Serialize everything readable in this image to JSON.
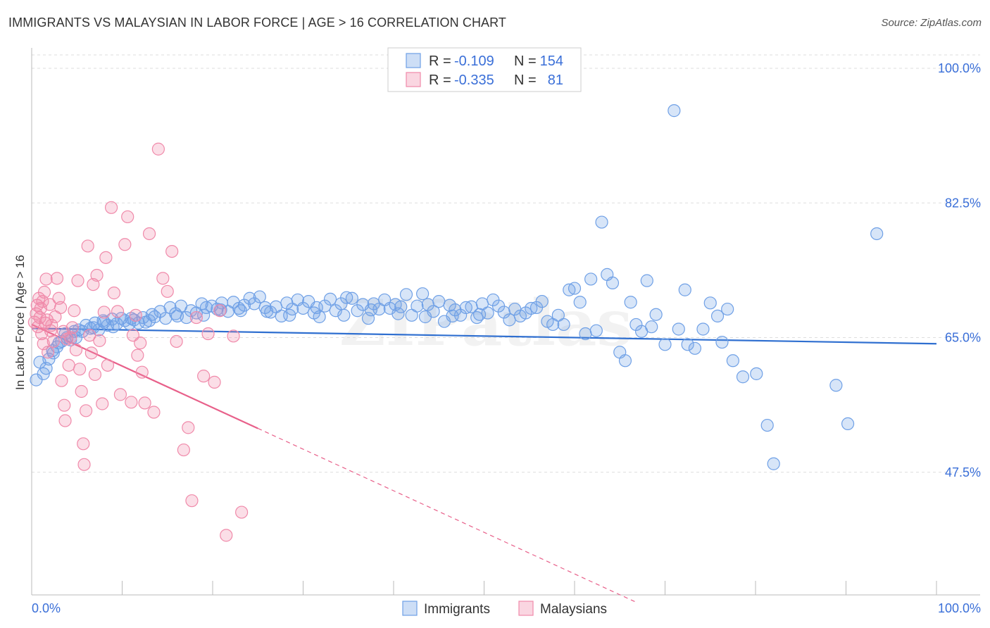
{
  "title": "IMMIGRANTS VS MALAYSIAN IN LABOR FORCE | AGE > 16 CORRELATION CHART",
  "source": "Source: ZipAtlas.com",
  "watermark": "ZIPatlas",
  "colors": {
    "immigrants": "#6fa0e6",
    "immigrants_line": "#2f6fd0",
    "malaysians": "#f08aaa",
    "malaysians_line": "#e8608a",
    "axis_text": "#3a6fd8",
    "grid": "#dddddd"
  },
  "legend": {
    "rows": [
      {
        "r_label": "R =",
        "r_value": "-0.109",
        "n_label": "N =",
        "n_value": "154"
      },
      {
        "r_label": "R =",
        "r_value": "-0.335",
        "n_label": "N =",
        "n_value": "81"
      }
    ]
  },
  "bottom_legend": [
    "Immigrants",
    "Malaysians"
  ],
  "chart_data": {
    "type": "scatter",
    "title": "IMMIGRANTS VS MALAYSIAN IN LABOR FORCE | AGE > 16 CORRELATION CHART",
    "xlabel": "",
    "ylabel": "In Labor Force | Age > 16",
    "xlim": [
      0,
      100
    ],
    "ylim": [
      30,
      100
    ],
    "x_tick_labels": [
      "0.0%",
      "100.0%"
    ],
    "y_ticks": [
      47.5,
      65.0,
      82.5,
      100.0
    ],
    "y_tick_labels": [
      "47.5%",
      "65.0%",
      "82.5%",
      "100.0%"
    ],
    "series": [
      {
        "name": "Immigrants",
        "r": -0.109,
        "n": 154,
        "trend": {
          "x": [
            0,
            100
          ],
          "y": [
            66.2,
            64.2
          ]
        },
        "points": [
          [
            0.5,
            59.5
          ],
          [
            1.3,
            60.3
          ],
          [
            1.9,
            62.2
          ],
          [
            2.3,
            63.3
          ],
          [
            2.8,
            63.8
          ],
          [
            3.3,
            64.5
          ],
          [
            3.9,
            65.0
          ],
          [
            4.3,
            64.7
          ],
          [
            4.7,
            65.8
          ],
          [
            5.2,
            66.0
          ],
          [
            5.6,
            65.8
          ],
          [
            6.0,
            66.6
          ],
          [
            6.5,
            66.2
          ],
          [
            7.0,
            66.9
          ],
          [
            7.4,
            66.0
          ],
          [
            7.9,
            67.2
          ],
          [
            8.4,
            66.6
          ],
          [
            8.9,
            67.4
          ],
          [
            9.4,
            66.8
          ],
          [
            9.9,
            67.5
          ],
          [
            10.3,
            67.2
          ],
          [
            10.8,
            66.8
          ],
          [
            11.3,
            67.3
          ],
          [
            11.8,
            66.9
          ],
          [
            12.3,
            67.6
          ],
          [
            13.0,
            67.2
          ],
          [
            13.6,
            67.7
          ],
          [
            14.2,
            68.4
          ],
          [
            14.8,
            67.5
          ],
          [
            15.3,
            68.9
          ],
          [
            15.9,
            68.1
          ],
          [
            16.5,
            69.1
          ],
          [
            17.1,
            67.6
          ],
          [
            17.6,
            68.5
          ],
          [
            18.2,
            68.2
          ],
          [
            18.8,
            69.4
          ],
          [
            19.3,
            68.9
          ],
          [
            19.9,
            69.1
          ],
          [
            20.5,
            68.7
          ],
          [
            21.0,
            69.5
          ],
          [
            21.7,
            68.4
          ],
          [
            22.3,
            69.6
          ],
          [
            22.9,
            68.8
          ],
          [
            23.5,
            69.2
          ],
          [
            24.1,
            70.1
          ],
          [
            24.6,
            69.4
          ],
          [
            25.2,
            70.3
          ],
          [
            25.8,
            68.9
          ],
          [
            26.4,
            68.3
          ],
          [
            27.0,
            69.0
          ],
          [
            27.6,
            67.8
          ],
          [
            28.2,
            69.5
          ],
          [
            28.8,
            68.7
          ],
          [
            29.4,
            69.9
          ],
          [
            30.0,
            68.8
          ],
          [
            30.6,
            69.7
          ],
          [
            31.2,
            68.2
          ],
          [
            31.8,
            67.7
          ],
          [
            32.4,
            69.1
          ],
          [
            33.0,
            70.0
          ],
          [
            33.6,
            68.5
          ],
          [
            34.2,
            69.4
          ],
          [
            34.8,
            70.2
          ],
          [
            35.4,
            70.1
          ],
          [
            36.0,
            68.5
          ],
          [
            36.6,
            69.3
          ],
          [
            37.2,
            67.5
          ],
          [
            37.8,
            69.4
          ],
          [
            38.4,
            68.7
          ],
          [
            39.0,
            69.9
          ],
          [
            39.6,
            68.8
          ],
          [
            40.2,
            69.3
          ],
          [
            40.8,
            69.0
          ],
          [
            41.4,
            70.6
          ],
          [
            42.0,
            67.9
          ],
          [
            42.6,
            69.1
          ],
          [
            43.2,
            70.7
          ],
          [
            43.8,
            69.3
          ],
          [
            44.4,
            68.4
          ],
          [
            45.0,
            69.7
          ],
          [
            45.6,
            67.1
          ],
          [
            46.2,
            69.2
          ],
          [
            46.8,
            68.6
          ],
          [
            47.4,
            67.9
          ],
          [
            48.0,
            68.9
          ],
          [
            48.6,
            69.0
          ],
          [
            49.2,
            67.6
          ],
          [
            49.8,
            69.4
          ],
          [
            50.4,
            68.2
          ],
          [
            51.0,
            69.9
          ],
          [
            51.6,
            69.1
          ],
          [
            52.2,
            68.3
          ],
          [
            52.8,
            67.3
          ],
          [
            53.4,
            68.7
          ],
          [
            54.0,
            67.8
          ],
          [
            54.6,
            68.2
          ],
          [
            55.2,
            68.8
          ],
          [
            55.8,
            68.9
          ],
          [
            56.4,
            69.7
          ],
          [
            57.0,
            67.1
          ],
          [
            57.6,
            66.7
          ],
          [
            58.2,
            67.9
          ],
          [
            58.8,
            66.7
          ],
          [
            59.4,
            71.2
          ],
          [
            60.0,
            71.4
          ],
          [
            60.6,
            69.6
          ],
          [
            61.2,
            65.5
          ],
          [
            61.8,
            72.6
          ],
          [
            62.4,
            65.9
          ],
          [
            63.0,
            80.0
          ],
          [
            63.6,
            73.2
          ],
          [
            64.2,
            72.1
          ],
          [
            65.0,
            63.1
          ],
          [
            65.6,
            62.0
          ],
          [
            66.2,
            69.6
          ],
          [
            66.8,
            66.7
          ],
          [
            67.4,
            65.8
          ],
          [
            68.0,
            72.4
          ],
          [
            68.5,
            66.4
          ],
          [
            69.0,
            68.0
          ],
          [
            70.0,
            64.1
          ],
          [
            71.0,
            94.5
          ],
          [
            71.5,
            66.1
          ],
          [
            72.2,
            71.2
          ],
          [
            72.5,
            64.1
          ],
          [
            73.3,
            63.6
          ],
          [
            74.2,
            66.1
          ],
          [
            75.0,
            69.5
          ],
          [
            75.8,
            67.8
          ],
          [
            76.3,
            64.4
          ],
          [
            76.9,
            68.7
          ],
          [
            77.5,
            62.0
          ],
          [
            78.6,
            59.9
          ],
          [
            80.1,
            60.3
          ],
          [
            81.3,
            53.6
          ],
          [
            82.0,
            48.6
          ],
          [
            88.9,
            58.8
          ],
          [
            90.2,
            53.8
          ],
          [
            93.4,
            78.5
          ],
          [
            0.9,
            61.8
          ],
          [
            1.6,
            61.0
          ],
          [
            2.4,
            63.0
          ],
          [
            3.0,
            64.3
          ],
          [
            3.7,
            65.5
          ],
          [
            4.9,
            65.0
          ],
          [
            6.8,
            66.3
          ],
          [
            8.0,
            67.0
          ],
          [
            9.0,
            66.4
          ],
          [
            11.0,
            67.5
          ],
          [
            12.6,
            67.0
          ],
          [
            13.3,
            68.0
          ],
          [
            16.1,
            67.8
          ],
          [
            19.0,
            67.9
          ],
          [
            20.9,
            68.6
          ],
          [
            23.1,
            68.5
          ],
          [
            26.0,
            68.4
          ],
          [
            28.5,
            67.9
          ],
          [
            31.5,
            68.9
          ],
          [
            34.5,
            67.9
          ],
          [
            37.5,
            68.6
          ],
          [
            40.5,
            68.1
          ],
          [
            43.5,
            67.7
          ],
          [
            46.5,
            67.8
          ],
          [
            49.5,
            68.0
          ]
        ]
      },
      {
        "name": "Malaysians",
        "r": -0.335,
        "n": 81,
        "trend": {
          "x": [
            0,
            25
          ],
          "y": [
            66.7,
            53.2
          ]
        },
        "trend_dashed": {
          "x": [
            25,
            67
          ],
          "y": [
            53.2,
            30.5
          ]
        },
        "points": [
          [
            0.3,
            67.0
          ],
          [
            0.5,
            68.1
          ],
          [
            0.6,
            69.2
          ],
          [
            0.7,
            66.4
          ],
          [
            0.8,
            70.1
          ],
          [
            0.9,
            67.6
          ],
          [
            1.0,
            68.8
          ],
          [
            1.1,
            65.5
          ],
          [
            1.2,
            69.7
          ],
          [
            1.3,
            64.2
          ],
          [
            1.4,
            70.9
          ],
          [
            1.5,
            66.9
          ],
          [
            1.6,
            72.6
          ],
          [
            1.7,
            67.3
          ],
          [
            1.8,
            63.1
          ],
          [
            2.0,
            69.3
          ],
          [
            2.1,
            65.9
          ],
          [
            2.2,
            66.6
          ],
          [
            2.4,
            64.5
          ],
          [
            2.6,
            67.7
          ],
          [
            2.8,
            72.7
          ],
          [
            3.0,
            70.1
          ],
          [
            3.2,
            68.9
          ],
          [
            3.3,
            59.4
          ],
          [
            3.5,
            65.8
          ],
          [
            3.6,
            56.2
          ],
          [
            3.7,
            54.2
          ],
          [
            3.9,
            64.8
          ],
          [
            4.1,
            61.4
          ],
          [
            4.3,
            65.0
          ],
          [
            4.5,
            66.3
          ],
          [
            4.7,
            68.5
          ],
          [
            4.9,
            63.4
          ],
          [
            5.1,
            72.4
          ],
          [
            5.3,
            60.9
          ],
          [
            5.5,
            58.0
          ],
          [
            5.7,
            51.2
          ],
          [
            5.8,
            48.5
          ],
          [
            6.0,
            55.5
          ],
          [
            6.2,
            76.9
          ],
          [
            6.4,
            65.3
          ],
          [
            6.6,
            63.0
          ],
          [
            6.8,
            71.9
          ],
          [
            7.0,
            60.2
          ],
          [
            7.2,
            73.1
          ],
          [
            7.5,
            64.6
          ],
          [
            7.8,
            56.4
          ],
          [
            8.0,
            68.3
          ],
          [
            8.2,
            75.4
          ],
          [
            8.4,
            61.4
          ],
          [
            8.8,
            81.9
          ],
          [
            9.1,
            70.8
          ],
          [
            9.5,
            68.4
          ],
          [
            9.8,
            57.6
          ],
          [
            10.3,
            77.1
          ],
          [
            10.6,
            80.7
          ],
          [
            11.0,
            56.6
          ],
          [
            11.2,
            65.3
          ],
          [
            11.5,
            67.9
          ],
          [
            11.7,
            62.7
          ],
          [
            12.0,
            64.3
          ],
          [
            12.2,
            60.5
          ],
          [
            12.5,
            56.5
          ],
          [
            13.0,
            78.5
          ],
          [
            13.5,
            55.3
          ],
          [
            14.0,
            89.5
          ],
          [
            14.5,
            72.7
          ],
          [
            15.0,
            71.0
          ],
          [
            15.5,
            76.2
          ],
          [
            16.0,
            64.5
          ],
          [
            16.8,
            50.4
          ],
          [
            17.3,
            53.3
          ],
          [
            17.7,
            43.8
          ],
          [
            18.2,
            67.6
          ],
          [
            19.0,
            60.0
          ],
          [
            19.5,
            65.5
          ],
          [
            20.2,
            59.2
          ],
          [
            20.8,
            68.5
          ],
          [
            21.5,
            39.3
          ],
          [
            22.3,
            65.2
          ],
          [
            23.2,
            42.3
          ]
        ]
      }
    ]
  }
}
